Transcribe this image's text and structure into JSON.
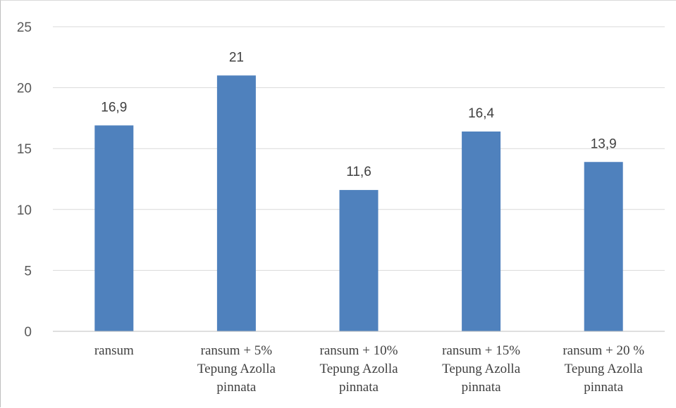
{
  "chart_data": {
    "type": "bar",
    "categories": [
      [
        "ransum"
      ],
      [
        "ransum + 5%",
        "Tepung Azolla",
        "pinnata"
      ],
      [
        "ransum + 10%",
        "Tepung Azolla",
        "pinnata"
      ],
      [
        "ransum + 15%",
        "Tepung Azolla",
        "pinnata"
      ],
      [
        "ransum + 20 %",
        "Tepung Azolla",
        "pinnata"
      ]
    ],
    "values": [
      16.9,
      21,
      11.6,
      16.4,
      13.9
    ],
    "data_labels": [
      "16,9",
      "21",
      "11,6",
      "16,4",
      "13,9"
    ],
    "ylim": [
      0,
      25
    ],
    "yticks": [
      0,
      5,
      10,
      15,
      20,
      25
    ],
    "grid": true,
    "legend": "none",
    "title": "",
    "xlabel": "",
    "ylabel": "",
    "colors": {
      "bar": "#4f81bd",
      "grid": "#d9d9d9",
      "axis": "#bfbfbf"
    }
  }
}
